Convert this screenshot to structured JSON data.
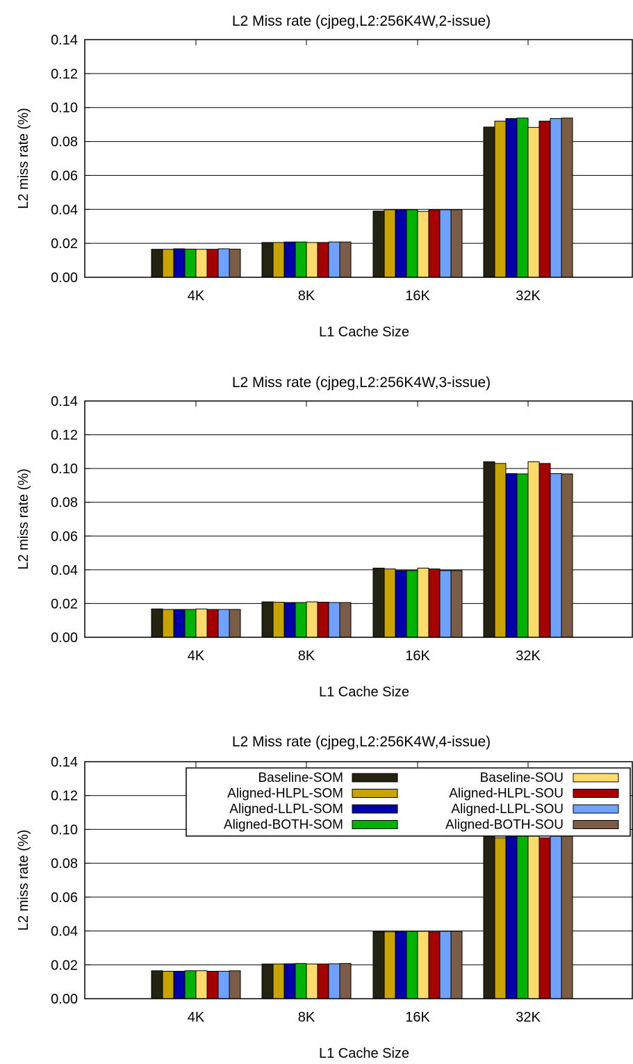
{
  "colors": {
    "Baseline-SOM": "#242210",
    "Aligned-HLPL-SOM": "#c9a400",
    "Aligned-LLPL-SOM": "#0000a8",
    "Aligned-BOTH-SOM": "#00b300",
    "Baseline-SOU": "#ffdb6e",
    "Aligned-HLPL-SOU": "#a50000",
    "Aligned-LLPL-SOU": "#6fa1ff",
    "Aligned-BOTH-SOU": "#7a5c47"
  },
  "chart_data": [
    {
      "type": "bar",
      "title": "L2 Miss rate (cjpeg,L2:256K4W,2-issue)",
      "xlabel": "L1 Cache Size",
      "ylabel": "L2 miss rate (%)",
      "ylim": [
        0,
        0.14
      ],
      "yticks": [
        "0.00",
        "0.02",
        "0.04",
        "0.06",
        "0.08",
        "0.10",
        "0.12",
        "0.14"
      ],
      "grid": true,
      "legend": null,
      "categories": [
        "4K",
        "8K",
        "16K",
        "32K"
      ],
      "series": [
        {
          "name": "Baseline-SOM",
          "values": [
            0.0165,
            0.0205,
            0.039,
            0.0885
          ]
        },
        {
          "name": "Aligned-HLPL-SOM",
          "values": [
            0.0165,
            0.0205,
            0.0398,
            0.092
          ]
        },
        {
          "name": "Aligned-LLPL-SOM",
          "values": [
            0.0168,
            0.0208,
            0.0398,
            0.0935
          ]
        },
        {
          "name": "Aligned-BOTH-SOM",
          "values": [
            0.0166,
            0.0208,
            0.0398,
            0.0938
          ]
        },
        {
          "name": "Baseline-SOU",
          "values": [
            0.0165,
            0.0205,
            0.0388,
            0.0883
          ]
        },
        {
          "name": "Aligned-HLPL-SOU",
          "values": [
            0.0165,
            0.0205,
            0.0398,
            0.092
          ]
        },
        {
          "name": "Aligned-LLPL-SOU",
          "values": [
            0.0168,
            0.0208,
            0.0398,
            0.0935
          ]
        },
        {
          "name": "Aligned-BOTH-SOU",
          "values": [
            0.0166,
            0.0208,
            0.0398,
            0.0938
          ]
        }
      ]
    },
    {
      "type": "bar",
      "title": "L2 Miss rate (cjpeg,L2:256K4W,3-issue)",
      "xlabel": "L1 Cache Size",
      "ylabel": "L2 miss rate (%)",
      "ylim": [
        0,
        0.14
      ],
      "yticks": [
        "0.00",
        "0.02",
        "0.04",
        "0.06",
        "0.08",
        "0.10",
        "0.12",
        "0.14"
      ],
      "grid": true,
      "legend": null,
      "categories": [
        "4K",
        "8K",
        "16K",
        "32K"
      ],
      "series": [
        {
          "name": "Baseline-SOM",
          "values": [
            0.0168,
            0.021,
            0.041,
            0.104
          ]
        },
        {
          "name": "Aligned-HLPL-SOM",
          "values": [
            0.0165,
            0.0208,
            0.0405,
            0.103
          ]
        },
        {
          "name": "Aligned-LLPL-SOM",
          "values": [
            0.0165,
            0.0206,
            0.0395,
            0.097
          ]
        },
        {
          "name": "Aligned-BOTH-SOM",
          "values": [
            0.0165,
            0.0206,
            0.0395,
            0.0968
          ]
        },
        {
          "name": "Baseline-SOU",
          "values": [
            0.0168,
            0.021,
            0.041,
            0.104
          ]
        },
        {
          "name": "Aligned-HLPL-SOU",
          "values": [
            0.0165,
            0.0208,
            0.0405,
            0.103
          ]
        },
        {
          "name": "Aligned-LLPL-SOU",
          "values": [
            0.0165,
            0.0206,
            0.0395,
            0.097
          ]
        },
        {
          "name": "Aligned-BOTH-SOU",
          "values": [
            0.0165,
            0.0206,
            0.0395,
            0.0968
          ]
        }
      ]
    },
    {
      "type": "bar",
      "title": "L2 Miss rate (cjpeg,L2:256K4W,4-issue)",
      "xlabel": "L1 Cache Size",
      "ylabel": "L2 miss rate (%)",
      "ylim": [
        0,
        0.14
      ],
      "yticks": [
        "0.00",
        "0.02",
        "0.04",
        "0.06",
        "0.08",
        "0.10",
        "0.12",
        "0.14"
      ],
      "grid": true,
      "legend": "top-right",
      "categories": [
        "4K",
        "8K",
        "16K",
        "32K"
      ],
      "series": [
        {
          "name": "Baseline-SOM",
          "values": [
            0.0165,
            0.0205,
            0.0398,
            0.0962
          ]
        },
        {
          "name": "Aligned-HLPL-SOM",
          "values": [
            0.0162,
            0.0205,
            0.0395,
            0.095
          ]
        },
        {
          "name": "Aligned-LLPL-SOM",
          "values": [
            0.0162,
            0.0206,
            0.0398,
            0.0965
          ]
        },
        {
          "name": "Aligned-BOTH-SOM",
          "values": [
            0.0165,
            0.0208,
            0.0398,
            0.0968
          ]
        },
        {
          "name": "Baseline-SOU",
          "values": [
            0.0165,
            0.0205,
            0.0398,
            0.0962
          ]
        },
        {
          "name": "Aligned-HLPL-SOU",
          "values": [
            0.0162,
            0.0205,
            0.0395,
            0.095
          ]
        },
        {
          "name": "Aligned-LLPL-SOU",
          "values": [
            0.0162,
            0.0206,
            0.0398,
            0.0965
          ]
        },
        {
          "name": "Aligned-BOTH-SOU",
          "values": [
            0.0165,
            0.0208,
            0.0398,
            0.0968
          ]
        }
      ]
    }
  ]
}
